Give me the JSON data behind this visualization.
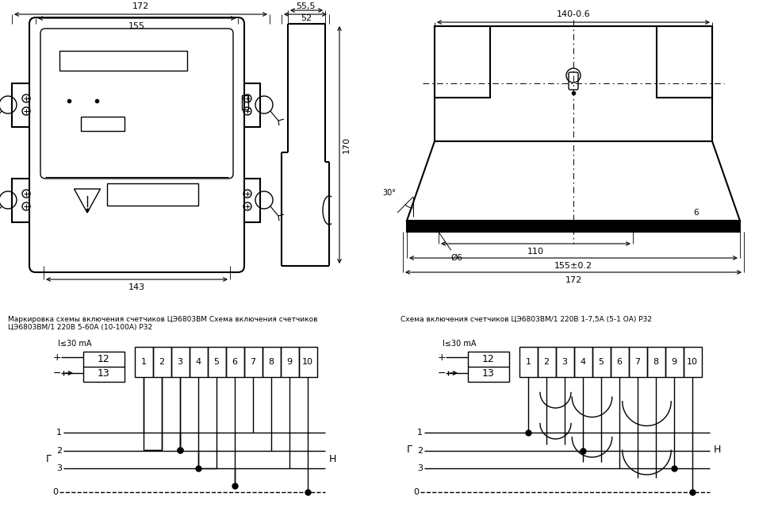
{
  "bg_color": "#ffffff",
  "line_color": "#000000",
  "title1": "Маркировка схемы включения счетчиков ЦЭ6803ВМ Схема включения счетчиков",
  "title2": "ЦЭ6803ВМ/1 220В 5-60А (10-100А) Р32",
  "title3": "Схема включения счетчиков ЦЭ6803ВМ/1 220В 1-7,5А (5-1 ОА) Р32",
  "dim_172": "172",
  "dim_155": "155",
  "dim_143": "143",
  "dim_55_5": "55,5",
  "dim_52": "52",
  "dim_170": "170",
  "dim_140": "140-0.6",
  "dim_110": "110",
  "dim_155_02": "155±0.2",
  "dim_172b": "172",
  "dim_phi6": "Ø6",
  "dim_6": "6",
  "dim_30": "30°",
  "label_G": "Г",
  "label_N": "Н",
  "label_plus": "+",
  "label_minus": "−",
  "label_I": "I≤30 mA",
  "terminals": [
    "1",
    "2",
    "3",
    "4",
    "5",
    "6",
    "7",
    "8",
    "9",
    "10"
  ],
  "terminal_12": "12",
  "terminal_13": "13"
}
